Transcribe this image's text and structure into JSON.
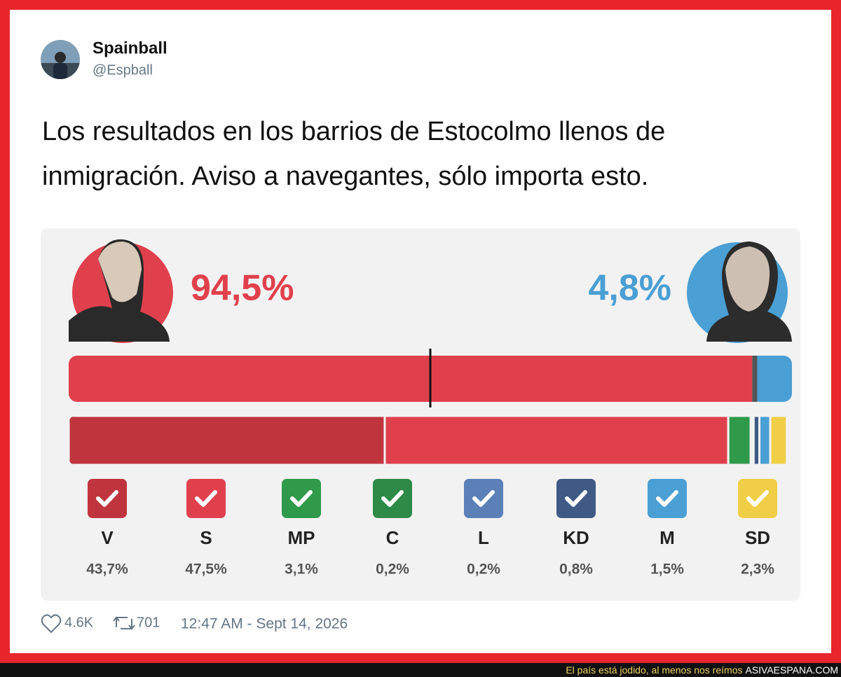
{
  "tweet": {
    "author": "Spainball",
    "handle": "@Espball",
    "text_lines": [
      "Los resultados en los barrios de Estocolmo llenos de",
      "inmigración. Aviso a navegantes, sólo importa esto."
    ],
    "graphic": {
      "blocs": [
        {
          "value": 94.5,
          "label": "94,5%",
          "color": "#e0404c"
        },
        {
          "value": 4.8,
          "label": "4,8%",
          "color": "#4a9fd4"
        }
      ],
      "parties": [
        {
          "name": "V",
          "value": 43.7,
          "label": "43,7%",
          "color": "#c0353d"
        },
        {
          "name": "S",
          "value": 47.5,
          "label": "47,5%",
          "color": "#e0404c"
        },
        {
          "name": "MP",
          "value": 3.1,
          "label": "3,1%",
          "color": "#2f9a4a"
        },
        {
          "name": "C",
          "value": 0.2,
          "label": "0,2%",
          "color": "#2d8a47"
        },
        {
          "name": "L",
          "value": 0.2,
          "label": "0,2%",
          "color": "#5b80b8"
        },
        {
          "name": "KD",
          "value": 0.8,
          "label": "0,8%",
          "color": "#3e5a85"
        },
        {
          "name": "M",
          "value": 1.5,
          "label": "1,5%",
          "color": "#4a9fd4"
        },
        {
          "name": "SD",
          "value": 2.3,
          "label": "2,3%",
          "color": "#f0cf47"
        }
      ]
    },
    "likes": "4.6K",
    "retweets": 701,
    "timestamp": "12:47 AM - Sept 14, 2026"
  },
  "watermark": {
    "slogan": "El país está jodido, al menos nos reímos",
    "site": "ASIVAESPANA.COM"
  }
}
